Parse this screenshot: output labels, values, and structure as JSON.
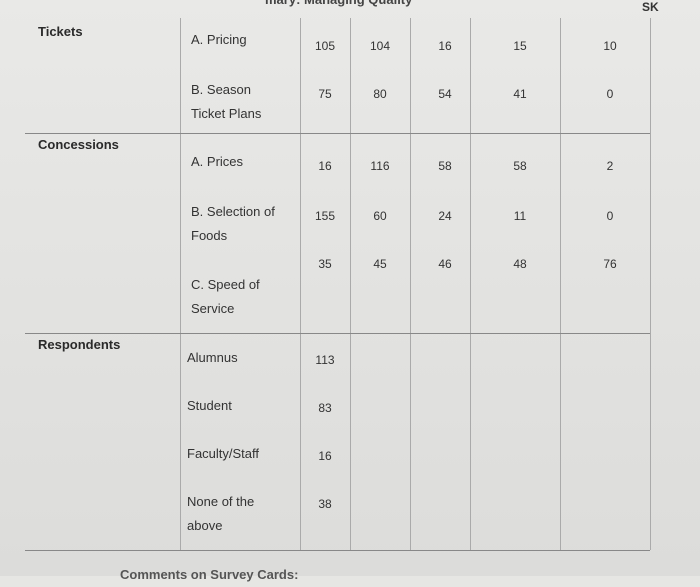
{
  "header": {
    "title": "mary: Managing Quality",
    "initials": "SK"
  },
  "table": {
    "sections": [
      {
        "label": "Tickets",
        "rows": [
          {
            "item": [
              "A. Pricing"
            ],
            "values": [
              105,
              104,
              16,
              15,
              10
            ]
          },
          {
            "item": [
              "B. Season",
              "Ticket Plans"
            ],
            "values": [
              75,
              80,
              54,
              41,
              0
            ]
          }
        ]
      },
      {
        "label": "Concessions",
        "rows": [
          {
            "item": [
              "A. Prices"
            ],
            "values": [
              16,
              116,
              58,
              58,
              2
            ]
          },
          {
            "item": [
              "B. Selection of",
              "Foods"
            ],
            "values": [
              155,
              60,
              24,
              11,
              0
            ]
          },
          {
            "item": [
              "C. Speed of",
              "Service"
            ],
            "values": [
              35,
              45,
              46,
              48,
              76
            ]
          }
        ]
      },
      {
        "label": "Respondents",
        "rows": [
          {
            "item": [
              "Alumnus"
            ],
            "values": [
              113
            ]
          },
          {
            "item": [
              "Student"
            ],
            "values": [
              83
            ]
          },
          {
            "item": [
              "Faculty/Staff"
            ],
            "values": [
              16
            ]
          },
          {
            "item": [
              "None of the",
              "above"
            ],
            "values": [
              38
            ]
          }
        ]
      }
    ]
  },
  "footer": {
    "text": "Comments on Survey Cards:"
  }
}
